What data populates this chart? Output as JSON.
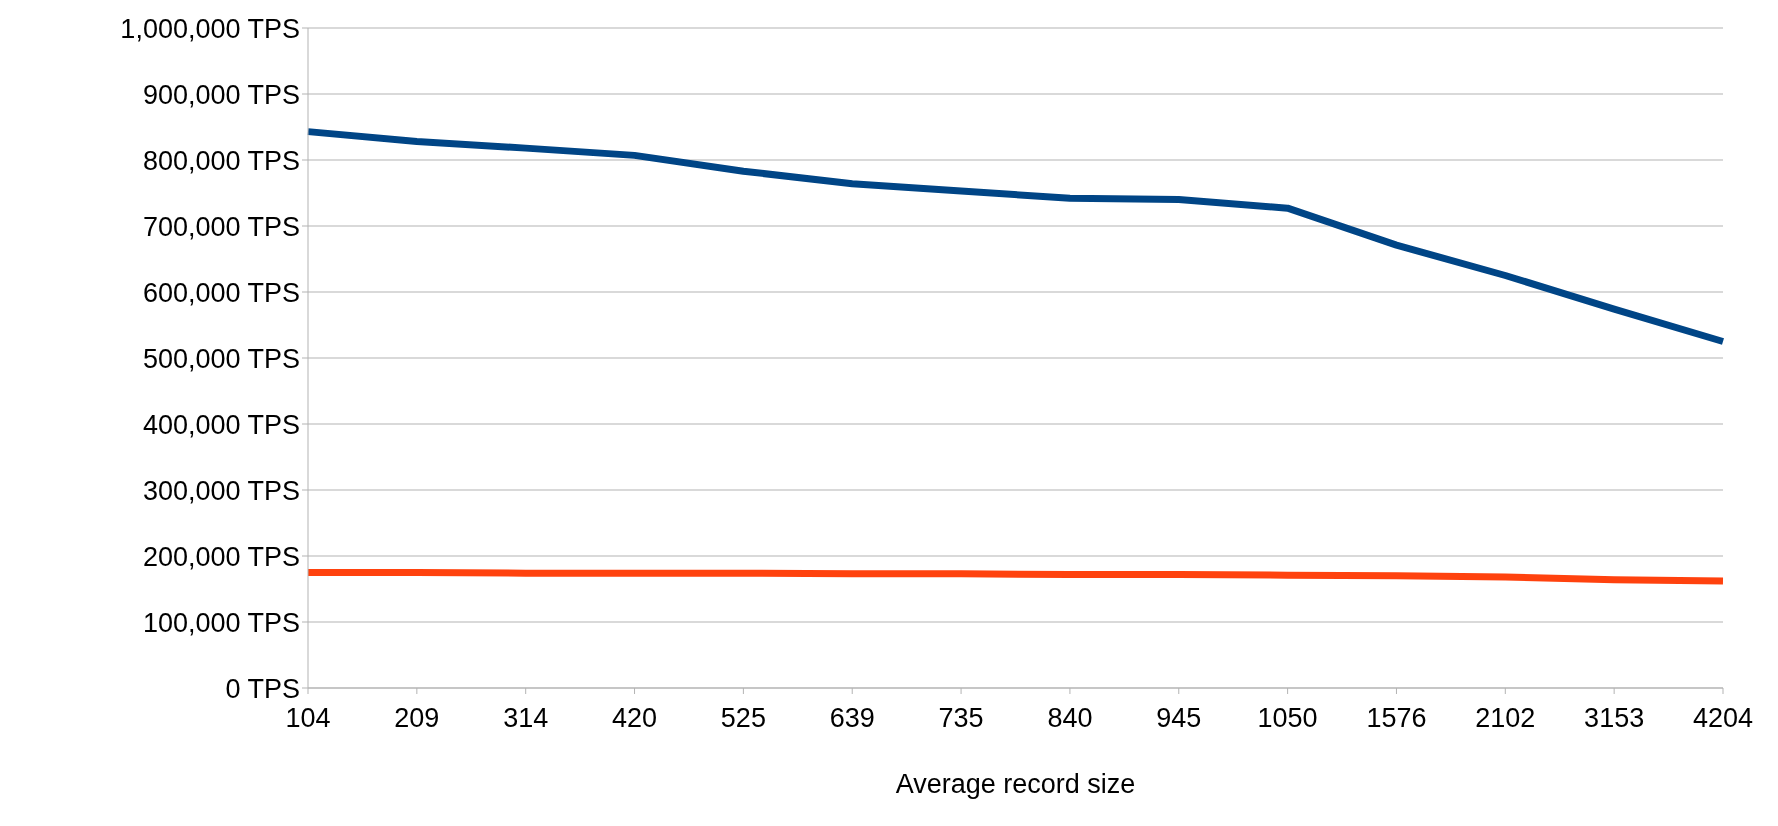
{
  "chart_data": {
    "type": "line",
    "xlabel": "Average record size",
    "categories": [
      "104",
      "209",
      "314",
      "420",
      "525",
      "639",
      "735",
      "840",
      "945",
      "1050",
      "1576",
      "2102",
      "3153",
      "4204"
    ],
    "series": [
      {
        "color": "#004586",
        "values": [
          843000,
          828000,
          818000,
          807000,
          783000,
          764000,
          753000,
          742000,
          740000,
          727000,
          671000,
          625000,
          574000,
          525000
        ]
      },
      {
        "color": "#ff420e",
        "values": [
          175000,
          175000,
          174000,
          174000,
          174000,
          173000,
          173000,
          172000,
          172000,
          171000,
          170000,
          168000,
          164000,
          162000
        ]
      }
    ],
    "ylim": [
      0,
      1000000
    ],
    "yticks": [
      {
        "value": 0,
        "label": "0 TPS"
      },
      {
        "value": 100000,
        "label": "100,000 TPS"
      },
      {
        "value": 200000,
        "label": "200,000 TPS"
      },
      {
        "value": 300000,
        "label": "300,000 TPS"
      },
      {
        "value": 400000,
        "label": "400,000 TPS"
      },
      {
        "value": 500000,
        "label": "500,000 TPS"
      },
      {
        "value": 600000,
        "label": "600,000 TPS"
      },
      {
        "value": 700000,
        "label": "700,000 TPS"
      },
      {
        "value": 800000,
        "label": "800,000 TPS"
      },
      {
        "value": 900000,
        "label": "900,000 TPS"
      },
      {
        "value": 1000000,
        "label": "1,000,000 TPS"
      }
    ],
    "grid": "y",
    "legend": false,
    "marker": "none",
    "line_style": "solid"
  }
}
